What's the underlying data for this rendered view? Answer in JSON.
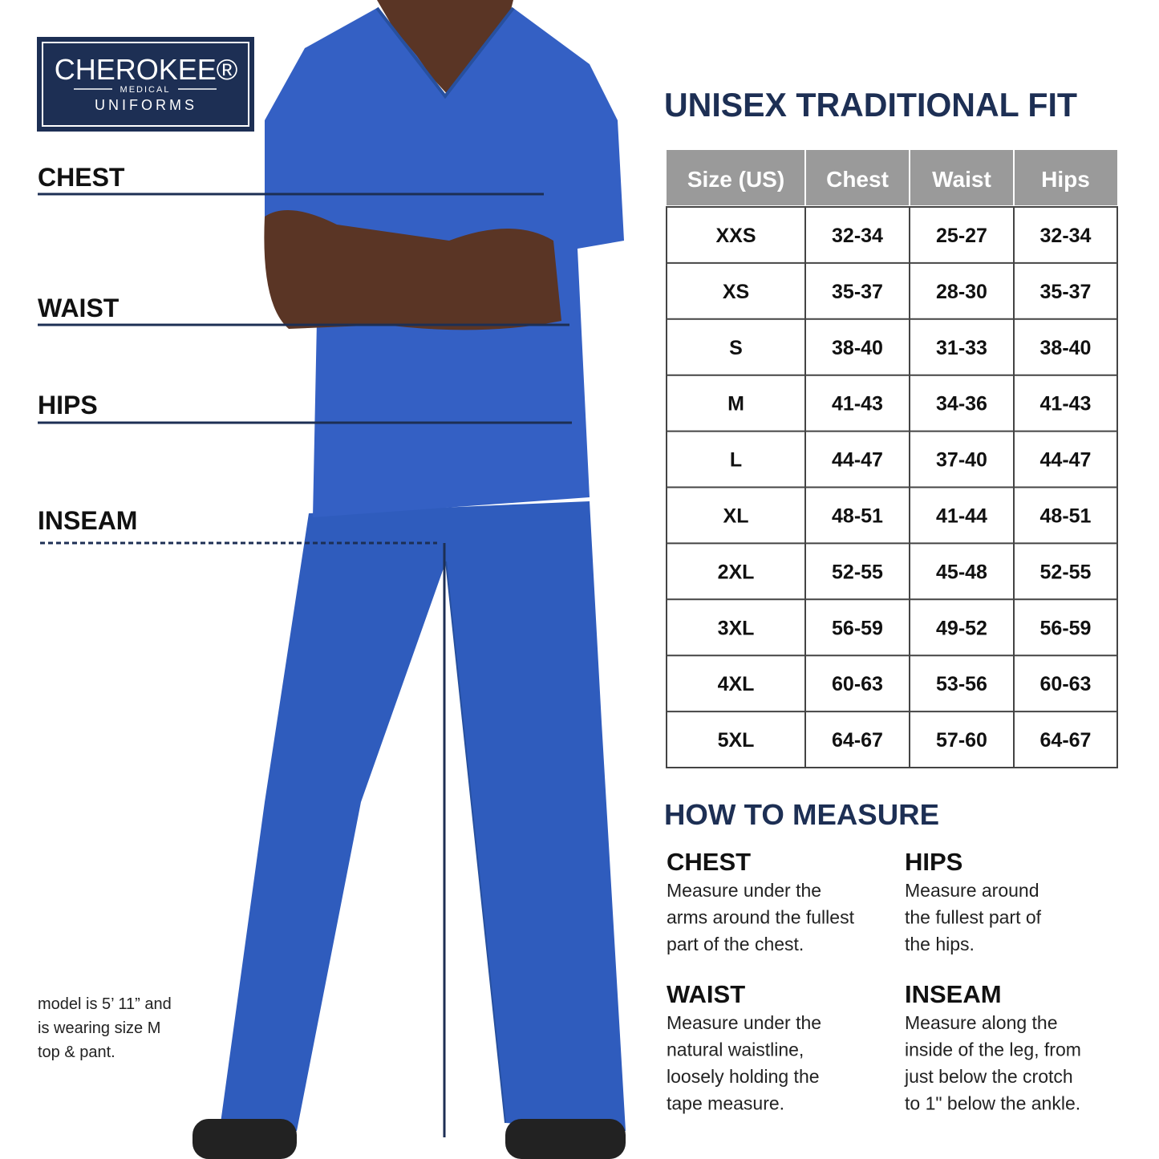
{
  "logo": {
    "brand": "CHEROKEE®",
    "sub": "MEDICAL",
    "line": "UNIFORMS"
  },
  "measure_labels": [
    "CHEST",
    "WAIST",
    "HIPS",
    "INSEAM"
  ],
  "model_note": [
    "model is 5’ 11” and",
    "is wearing size M",
    "top & pant."
  ],
  "size_chart": {
    "title": "UNISEX TRADITIONAL FIT",
    "columns": [
      "Size (US)",
      "Chest",
      "Waist",
      "Hips"
    ],
    "rows": [
      [
        "XXS",
        "32-34",
        "25-27",
        "32-34"
      ],
      [
        "XS",
        "35-37",
        "28-30",
        "35-37"
      ],
      [
        "S",
        "38-40",
        "31-33",
        "38-40"
      ],
      [
        "M",
        "41-43",
        "34-36",
        "41-43"
      ],
      [
        "L",
        "44-47",
        "37-40",
        "44-47"
      ],
      [
        "XL",
        "48-51",
        "41-44",
        "48-51"
      ],
      [
        "2XL",
        "52-55",
        "45-48",
        "52-55"
      ],
      [
        "3XL",
        "56-59",
        "49-52",
        "56-59"
      ],
      [
        "4XL",
        "60-63",
        "53-56",
        "60-63"
      ],
      [
        "5XL",
        "64-67",
        "57-60",
        "64-67"
      ]
    ]
  },
  "how_to_measure": {
    "title": "HOW TO MEASURE",
    "items": [
      {
        "heading": "CHEST",
        "lines": [
          "Measure under the",
          "arms around the fullest",
          "part of the chest."
        ]
      },
      {
        "heading": "HIPS",
        "lines": [
          "Measure around",
          "the fullest part of",
          "the hips."
        ]
      },
      {
        "heading": "WAIST",
        "lines": [
          "Measure under the",
          "natural waistline,",
          "loosely holding the",
          "tape measure."
        ]
      },
      {
        "heading": "INSEAM",
        "lines": [
          "Measure along the",
          "inside of the leg, from",
          "just below the crotch",
          "to 1\" below the ankle."
        ]
      }
    ]
  }
}
